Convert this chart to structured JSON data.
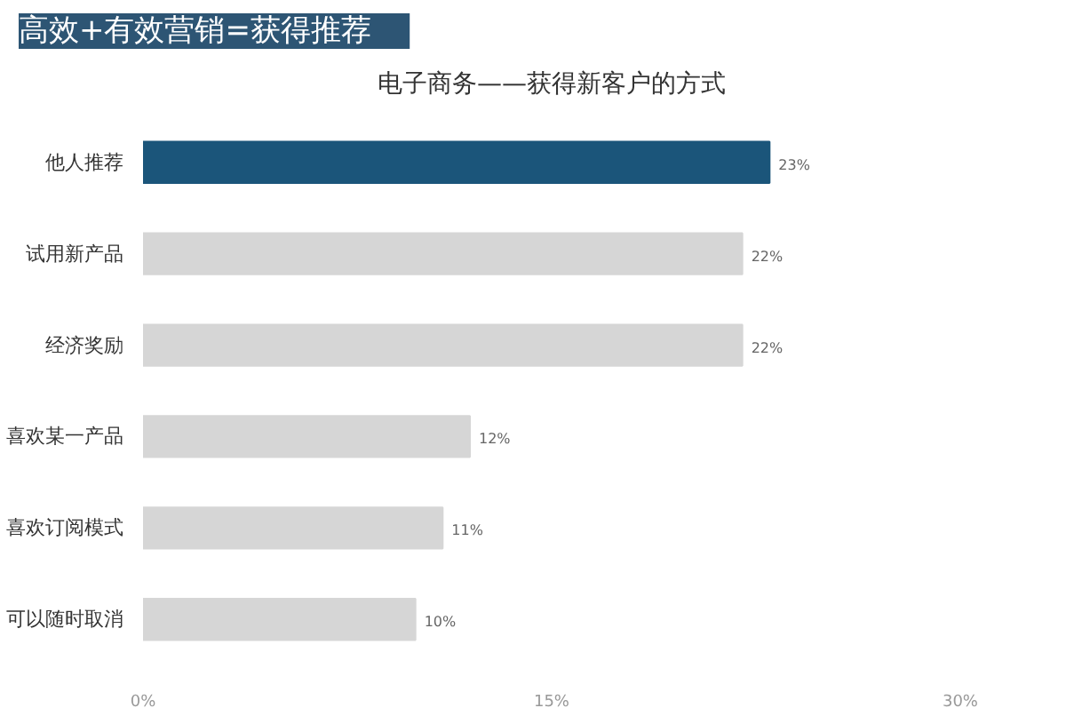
{
  "chart_data": {
    "type": "bar",
    "orientation": "horizontal",
    "title": "高效+有效营销=获得推荐",
    "subtitle": "电子商务——获得新客户的方式",
    "categories": [
      "他人推荐",
      "试用新产品",
      "经济奖励",
      "喜欢某一产品",
      "喜欢订阅模式",
      "可以随时取消"
    ],
    "values": [
      23,
      22,
      22,
      12,
      11,
      10
    ],
    "colors": [
      "#1b557a",
      "#d6d6d6",
      "#d6d6d6",
      "#d6d6d6",
      "#d6d6d6",
      "#d6d6d6"
    ],
    "value_labels": [
      "23%",
      "22%",
      "22%",
      "12%",
      "11%",
      "10%"
    ],
    "xlim": [
      0,
      30
    ],
    "xticks": [
      {
        "value": 0,
        "label": "0%"
      },
      {
        "value": 15,
        "label": "15%"
      },
      {
        "value": 30,
        "label": "30%"
      }
    ],
    "grid": false
  }
}
